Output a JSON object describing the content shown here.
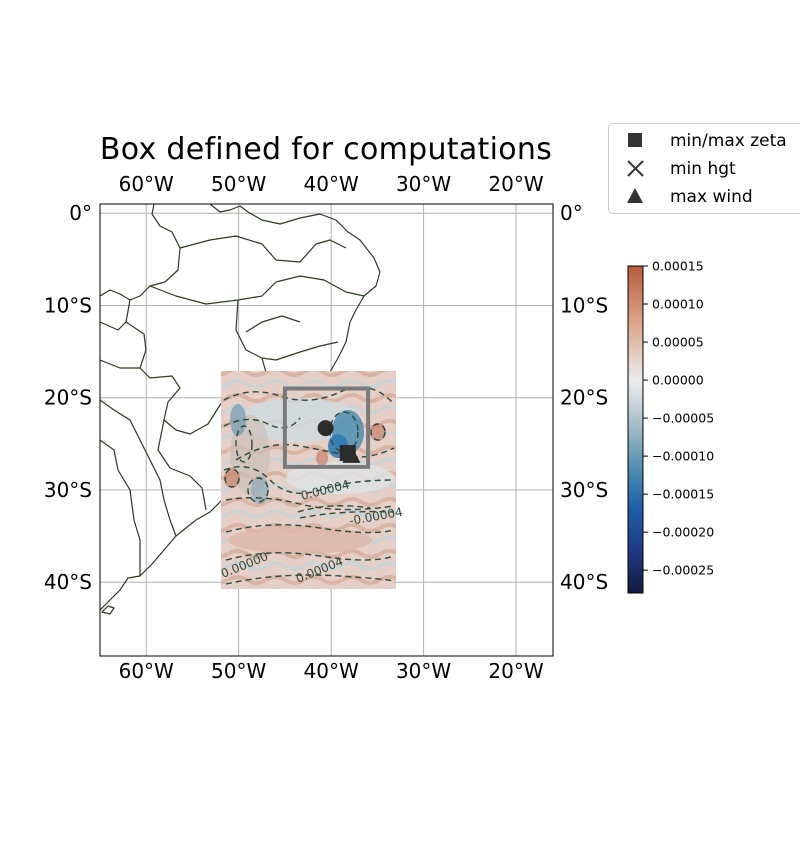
{
  "title": "Box defined for computations",
  "map": {
    "lon_labels": [
      "60°W",
      "50°W",
      "40°W",
      "30°W",
      "20°W"
    ],
    "lat_labels": [
      "0°",
      "10°S",
      "20°S",
      "30°S",
      "40°S"
    ],
    "lon_values": [
      -60,
      -50,
      -40,
      -30,
      -20
    ],
    "lat_values": [
      0,
      -10,
      -20,
      -30,
      -40
    ],
    "extent": {
      "lon_min": -65,
      "lon_max": -16,
      "lat_min": -48,
      "lat_max": 1
    },
    "field_extent": {
      "lon_min": -52,
      "lon_max": -33,
      "lat_min": -17,
      "lat_max": -40.5
    },
    "computation_box": {
      "lon_min": -45,
      "lon_max": -36,
      "lat_min": -19,
      "lat_max": -27.5
    },
    "contour_labels": [
      "0.00000",
      "0.00004",
      "0.00004",
      "-0.00004"
    ],
    "markers": [
      {
        "type": "circle",
        "name": "dot",
        "lon": -40.6,
        "lat": -23.3
      },
      {
        "type": "square",
        "name": "min/max zeta",
        "lon": -38.2,
        "lat": -26.0
      },
      {
        "type": "triangle",
        "name": "max wind",
        "lon": -37.8,
        "lat": -26.2
      }
    ]
  },
  "legend": {
    "items": [
      {
        "label": "min/max zeta",
        "marker": "square"
      },
      {
        "label": "min hgt",
        "marker": "x"
      },
      {
        "label": "max wind",
        "marker": "triangle"
      }
    ]
  },
  "colorbar": {
    "tick_values": [
      0.00015,
      0.0001,
      5e-05,
      0.0,
      -5e-05,
      -0.0001,
      -0.00015,
      -0.0002,
      -0.00025
    ],
    "tick_labels": [
      "0.00015",
      "0.00010",
      "0.00005",
      "0.00000",
      "−0.00005",
      "−0.00010",
      "−0.00015",
      "−0.00020",
      "−0.00025"
    ],
    "range": [
      -0.00028,
      0.00015
    ],
    "colors": {
      "high": "#b85a3e",
      "zero": "#ececec",
      "low": "#141a3e",
      "mid_neg": "#2f7bb4"
    }
  },
  "colors": {
    "coast": "#2b3a22",
    "grid": "#b0b0b0",
    "box": "#7a7a7a",
    "contour": "#2b4a3a",
    "marker": "#2b2b2b"
  }
}
